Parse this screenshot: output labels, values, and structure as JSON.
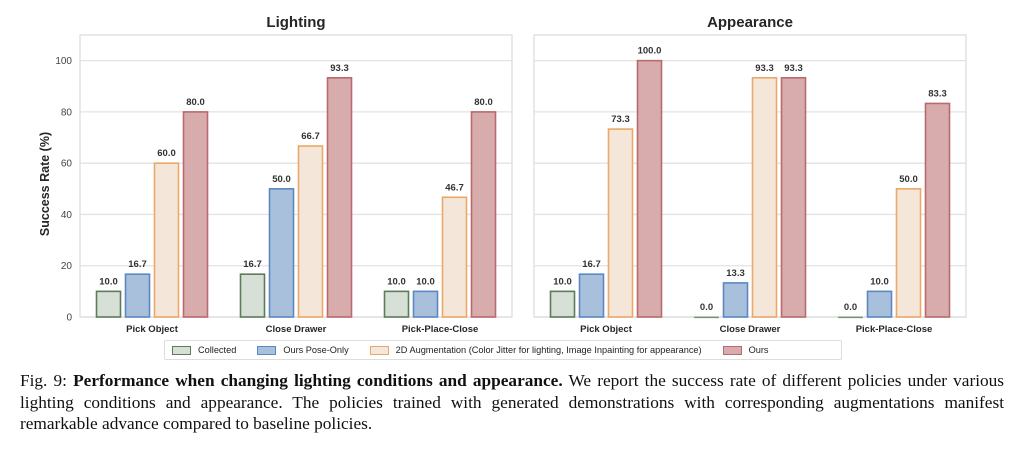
{
  "chart_data": [
    {
      "type": "bar",
      "title": "Lighting",
      "xlabel": "",
      "ylabel": "Success Rate (%)",
      "ylim": [
        0,
        110
      ],
      "yticks": [
        0,
        20,
        40,
        60,
        80,
        100
      ],
      "grid": true,
      "categories": [
        "Pick Object",
        "Close Drawer",
        "Pick-Place-Close"
      ],
      "series": [
        {
          "name": "Collected",
          "values": [
            10.0,
            16.7,
            10.0
          ]
        },
        {
          "name": "Ours Pose-Only",
          "values": [
            16.7,
            50.0,
            10.0
          ]
        },
        {
          "name": "2D Augmentation (Color Jitter for lighting, Image Inpainting for appearance)",
          "values": [
            60.0,
            66.7,
            46.7
          ]
        },
        {
          "name": "Ours",
          "values": [
            80.0,
            93.3,
            80.0
          ]
        }
      ]
    },
    {
      "type": "bar",
      "title": "Appearance",
      "xlabel": "",
      "ylabel": "",
      "ylim": [
        0,
        110
      ],
      "yticks": [
        0,
        20,
        40,
        60,
        80,
        100
      ],
      "grid": true,
      "categories": [
        "Pick Object",
        "Close Drawer",
        "Pick-Place-Close"
      ],
      "series": [
        {
          "name": "Collected",
          "values": [
            10.0,
            0.0,
            0.0
          ]
        },
        {
          "name": "Ours Pose-Only",
          "values": [
            16.7,
            13.3,
            10.0
          ]
        },
        {
          "name": "2D Augmentation (Color Jitter for lighting, Image Inpainting for appearance)",
          "values": [
            73.3,
            93.3,
            50.0
          ]
        },
        {
          "name": "Ours",
          "values": [
            100.0,
            93.3,
            83.3
          ]
        }
      ]
    }
  ],
  "series_styles": [
    {
      "fill": "#d7e0d6",
      "stroke": "#5d7b57"
    },
    {
      "fill": "#a8c0dc",
      "stroke": "#5b88c2"
    },
    {
      "fill": "#f5e6da",
      "stroke": "#e9a868"
    },
    {
      "fill": "#d8acad",
      "stroke": "#b86a6c"
    }
  ],
  "legend": {
    "position": "bottom-center",
    "items": [
      "Collected",
      "Ours Pose-Only",
      "2D Augmentation (Color Jitter for lighting, Image Inpainting for appearance)",
      "Ours"
    ]
  },
  "caption": {
    "label": "Fig. 9:",
    "bold": "Performance when changing lighting conditions and appearance.",
    "text": "We report the success rate of different policies under various lighting conditions and appearance. The policies trained with generated demonstrations with corresponding augmentations manifest remarkable advance compared to baseline policies."
  }
}
